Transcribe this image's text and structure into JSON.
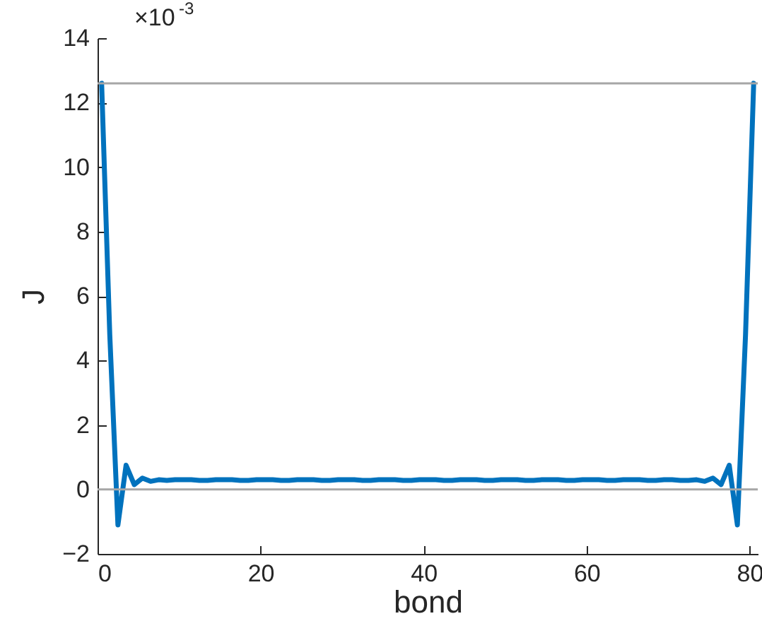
{
  "chart_data": {
    "type": "line",
    "xlabel": "bond",
    "ylabel": "J",
    "annotations": [
      "×10$^{-3}$"
    ],
    "x": [
      0.5,
      1.5,
      2.5,
      3.5,
      4.5,
      5.5,
      6.5,
      7.5,
      8.5,
      9.5,
      10.5,
      11.5,
      12.5,
      13.5,
      14.5,
      15.5,
      16.5,
      17.5,
      18.5,
      19.5,
      20.5,
      21.5,
      22.5,
      23.5,
      24.5,
      25.5,
      26.5,
      27.5,
      28.5,
      29.5,
      30.5,
      31.5,
      32.5,
      33.5,
      34.5,
      35.5,
      36.5,
      37.5,
      38.5,
      39.5,
      40.5,
      41.5,
      42.5,
      43.5,
      44.5,
      45.5,
      46.5,
      47.5,
      48.5,
      49.5,
      50.5,
      51.5,
      52.5,
      53.5,
      54.5,
      55.5,
      56.5,
      57.5,
      58.5,
      59.5,
      60.5,
      61.5,
      62.5,
      63.5,
      64.5,
      65.5,
      66.5,
      67.5,
      68.5,
      69.5,
      70.5,
      71.5,
      72.5,
      73.5,
      74.5,
      75.5,
      76.5,
      77.5,
      78.5,
      79.5,
      80.5
    ],
    "series": [
      {
        "color": "#0072bd",
        "values": [
          12.6,
          4.8,
          -1.1,
          0.75,
          0.15,
          0.35,
          0.25,
          0.3,
          0.28,
          0.3,
          0.3,
          0.3,
          0.28,
          0.28,
          0.3,
          0.3,
          0.3,
          0.28,
          0.28,
          0.3,
          0.3,
          0.3,
          0.28,
          0.28,
          0.3,
          0.3,
          0.3,
          0.28,
          0.28,
          0.3,
          0.3,
          0.3,
          0.28,
          0.28,
          0.3,
          0.3,
          0.3,
          0.28,
          0.28,
          0.3,
          0.3,
          0.3,
          0.28,
          0.28,
          0.3,
          0.3,
          0.3,
          0.28,
          0.28,
          0.3,
          0.3,
          0.3,
          0.28,
          0.28,
          0.3,
          0.3,
          0.3,
          0.28,
          0.28,
          0.3,
          0.3,
          0.3,
          0.28,
          0.28,
          0.3,
          0.3,
          0.3,
          0.28,
          0.28,
          0.3,
          0.3,
          0.28,
          0.28,
          0.3,
          0.25,
          0.35,
          0.15,
          0.75,
          -1.1,
          4.8,
          12.6
        ]
      }
    ],
    "xlim": [
      0,
      81
    ],
    "xticks": [
      0,
      20,
      40,
      60,
      80
    ],
    "ylim": [
      -2,
      14
    ],
    "yticks": [
      -2,
      0,
      2,
      4,
      6,
      8,
      10,
      12,
      14
    ],
    "ref_lines": [
      {
        "axis": "y",
        "value": 12.6,
        "color": "#a6a6a6"
      },
      {
        "axis": "y",
        "value": 0,
        "color": "#a6a6a6"
      }
    ],
    "grid": false,
    "legend": false,
    "marker": "none",
    "line_style": "solid"
  }
}
